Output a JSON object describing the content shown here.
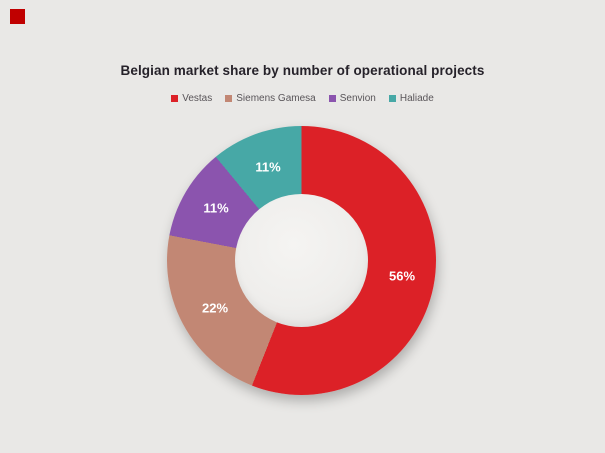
{
  "page": {
    "background_color": "#E9E8E6",
    "corner_square_color": "#C00000"
  },
  "chart": {
    "title": "Belgian market share by number of operational projects",
    "title_color": "#26222A",
    "legend_text_color": "#595559"
  },
  "chart_data": {
    "type": "pie",
    "subtype": "donut",
    "title": "Belgian market share by number of operational projects",
    "categories": [
      "Vestas",
      "Siemens Gamesa",
      "Senvion",
      "Haliade"
    ],
    "values": [
      56,
      22,
      11,
      11
    ],
    "unit": "%",
    "labels": [
      "56%",
      "22%",
      "11%",
      "11%"
    ],
    "colors": [
      "#DC2127",
      "#C28774",
      "#8B54AE",
      "#47A8A6"
    ],
    "legend_position": "top",
    "start_angle_deg": 0,
    "direction": "clockwise",
    "hole_ratio": 0.49,
    "data_label_color": "#FFFFFF"
  }
}
